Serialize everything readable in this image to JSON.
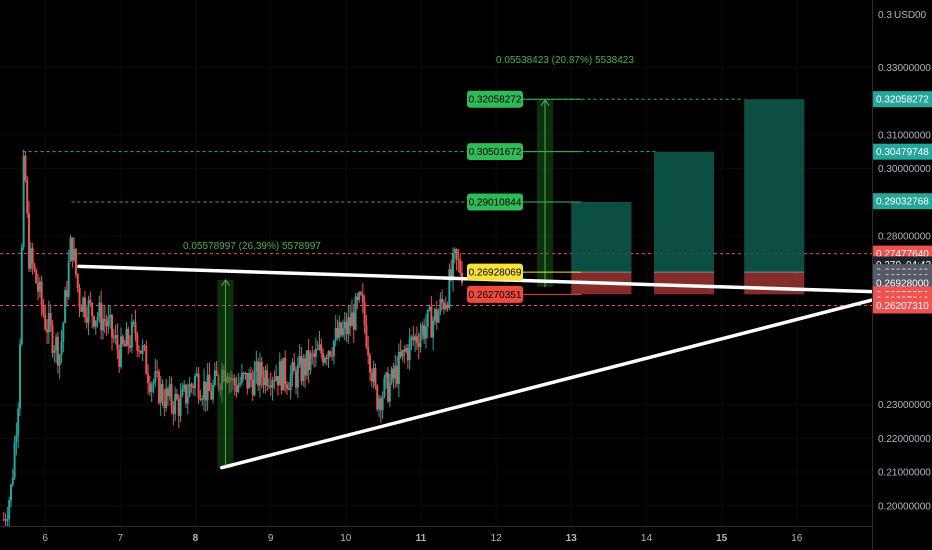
{
  "chart_data": {
    "type": "candlestick",
    "currency_label": "USD",
    "top_axis_label": "0.3",
    "top_axis_label_tail": "00",
    "x_ticks": [
      "6",
      "7",
      "8",
      "9",
      "10",
      "11",
      "12",
      "13",
      "14",
      "15",
      "16"
    ],
    "x_ticks_bold": [
      "8",
      "11",
      "13",
      "15"
    ],
    "y_ticks": [
      0.33,
      0.31,
      0.3,
      0.28,
      0.23,
      0.22,
      0.21,
      0.2
    ],
    "y_tick_labels": [
      "0.33000000",
      "0.31000000",
      "0.30000000",
      "0.28000000",
      "0.23000000",
      "0.22000000",
      "0.21000000",
      "0.20000000"
    ],
    "ylim": [
      0.194,
      0.35
    ],
    "xlim": [
      5.4,
      17.0
    ],
    "price_tags": [
      {
        "label": "0.32058272",
        "value": 0.32058272,
        "color": "#26a69a"
      },
      {
        "label": "0.30479748",
        "value": 0.30501672,
        "color": "#26a69a"
      },
      {
        "label": "0.29032768",
        "value": 0.29032768,
        "color": "#26a69a"
      },
      {
        "label": "0.27477640",
        "value": 0.2747764,
        "color": "#ef5350"
      },
      {
        "label": "0.270",
        "value": 0.2716,
        "color": "#1e222d",
        "extra": "04:42"
      },
      {
        "label": "0.26928069",
        "value": 0.26928069,
        "color": "#555a66"
      },
      {
        "label": "0.26928000",
        "value": 0.26771,
        "color": "#555a66"
      },
      {
        "label": "0.26928000",
        "value": 0.26614,
        "color": "#555a66"
      },
      {
        "label": "0.26270351",
        "value": 0.26270351,
        "color": "#ef5350"
      },
      {
        "label": "0.26207310",
        "value": 0.261,
        "color": "#ef5350"
      },
      {
        "label": "0.26207310",
        "value": 0.2594,
        "color": "#ef5350"
      }
    ],
    "level_boxes": [
      {
        "label": "0.32058272",
        "value": 0.32058272,
        "color": "#2fbb57"
      },
      {
        "label": "0.30501672",
        "value": 0.30501672,
        "color": "#2fbb57"
      },
      {
        "label": "0.29010844",
        "value": 0.29010844,
        "color": "#2fbb57"
      },
      {
        "label": "0.26928069",
        "value": 0.26928069,
        "color": "#f7e13a"
      },
      {
        "label": "0.26270351",
        "value": 0.26270351,
        "color": "#f04a3c"
      }
    ],
    "annotations": [
      {
        "text": "0.05538423 (20.87%) 5538423"
      },
      {
        "text": "0.05578997 (26.39%) 5578997"
      }
    ],
    "measure_ranges": [
      {
        "x": 8.4,
        "y0": 0.2112,
        "y1": 0.267
      },
      {
        "x": 12.65,
        "y0": 0.2649,
        "y1": 0.3204
      }
    ],
    "position_boxes": [
      {
        "x0": 13.0,
        "x1": 13.8,
        "entry": 0.26928069,
        "target": 0.29010844,
        "stop": 0.26270351
      },
      {
        "x0": 14.1,
        "x1": 14.9,
        "entry": 0.26928069,
        "target": 0.30501672,
        "stop": 0.26270351
      },
      {
        "x0": 15.3,
        "x1": 16.1,
        "entry": 0.26928069,
        "target": 0.32058272,
        "stop": 0.26270351
      }
    ],
    "trendlines": [
      {
        "x0": 6.45,
        "y0": 0.271,
        "x1": 17.0,
        "y1": 0.2635
      },
      {
        "x0": 8.35,
        "y0": 0.2113,
        "x1": 17.0,
        "y1": 0.261
      }
    ],
    "dashed_levels": [
      {
        "value": 0.30501672,
        "x0": 5.7,
        "x1": 14.12,
        "color": "#2fbb57"
      },
      {
        "value": 0.29010844,
        "x0": 6.35,
        "x1": 13.0,
        "color": "#2fbb57"
      },
      {
        "value": 0.32058272,
        "x0": 12.1,
        "x1": 15.3,
        "color": "#2fbb57"
      },
      {
        "value": 0.2747764,
        "x0": 5.4,
        "x1": 17.0,
        "color": "#ef5350"
      },
      {
        "value": 0.2594,
        "x0": 5.4,
        "x1": 17.0,
        "color": "#ef5350"
      }
    ],
    "ohlc_path": [
      [
        5.45,
        0.196
      ],
      [
        5.55,
        0.205
      ],
      [
        5.65,
        0.235
      ],
      [
        5.72,
        0.305
      ],
      [
        5.78,
        0.275
      ],
      [
        5.9,
        0.265
      ],
      [
        6.0,
        0.255
      ],
      [
        6.1,
        0.25
      ],
      [
        6.2,
        0.245
      ],
      [
        6.35,
        0.279
      ],
      [
        6.45,
        0.262
      ],
      [
        6.6,
        0.258
      ],
      [
        6.8,
        0.255
      ],
      [
        7.0,
        0.245
      ],
      [
        7.2,
        0.252
      ],
      [
        7.4,
        0.238
      ],
      [
        7.6,
        0.232
      ],
      [
        7.8,
        0.23
      ],
      [
        8.0,
        0.238
      ],
      [
        8.2,
        0.233
      ],
      [
        8.4,
        0.242
      ],
      [
        8.5,
        0.236
      ],
      [
        8.7,
        0.237
      ],
      [
        9.0,
        0.24
      ],
      [
        9.3,
        0.238
      ],
      [
        9.6,
        0.244
      ],
      [
        9.8,
        0.248
      ],
      [
        10.0,
        0.252
      ],
      [
        10.2,
        0.26
      ],
      [
        10.3,
        0.248
      ],
      [
        10.4,
        0.232
      ],
      [
        10.6,
        0.236
      ],
      [
        10.8,
        0.246
      ],
      [
        11.0,
        0.252
      ],
      [
        11.2,
        0.256
      ],
      [
        11.35,
        0.263
      ],
      [
        11.45,
        0.272
      ],
      [
        11.55,
        0.27
      ]
    ]
  }
}
